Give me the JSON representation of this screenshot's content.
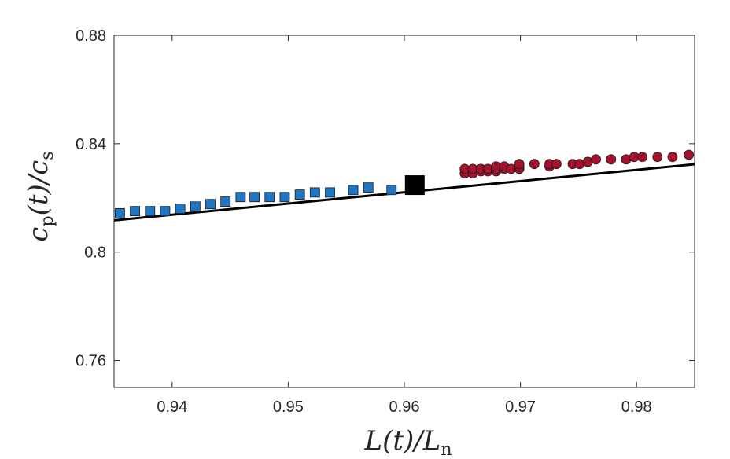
{
  "chart_data": {
    "type": "scatter",
    "xlabel": {
      "base": "L(t)/L",
      "sub": "n"
    },
    "ylabel": {
      "base": "c",
      "sub1": "p",
      "mid": "(t)/c",
      "sub2": "s"
    },
    "xlim": [
      0.935,
      0.985
    ],
    "ylim": [
      0.75,
      0.88
    ],
    "xticks": [
      0.94,
      0.95,
      0.96,
      0.97,
      0.98
    ],
    "yticks": [
      0.76,
      0.8,
      0.84,
      0.88
    ],
    "xtick_labels": [
      "0.94",
      "0.95",
      "0.96",
      "0.97",
      "0.98"
    ],
    "ytick_labels": [
      "0.76",
      "0.8",
      "0.84",
      "0.88"
    ],
    "grid": false,
    "series": [
      {
        "marker": "square",
        "color": "#1f77c4",
        "points": [
          [
            0.9355,
            0.8143
          ],
          [
            0.9368,
            0.8151
          ],
          [
            0.9381,
            0.8151
          ],
          [
            0.9394,
            0.8151
          ],
          [
            0.9407,
            0.816
          ],
          [
            0.942,
            0.8168
          ],
          [
            0.9433,
            0.8177
          ],
          [
            0.9446,
            0.8186
          ],
          [
            0.9459,
            0.8203
          ],
          [
            0.9471,
            0.8203
          ],
          [
            0.9484,
            0.8203
          ],
          [
            0.9497,
            0.8203
          ],
          [
            0.951,
            0.8212
          ],
          [
            0.9523,
            0.822
          ],
          [
            0.9536,
            0.822
          ],
          [
            0.9556,
            0.8229
          ],
          [
            0.9569,
            0.8238
          ],
          [
            0.9589,
            0.8229
          ]
        ]
      },
      {
        "marker": "circle",
        "color": "#a4122e",
        "points": [
          [
            0.9652,
            0.829
          ],
          [
            0.9652,
            0.8307
          ],
          [
            0.9659,
            0.829
          ],
          [
            0.9659,
            0.8307
          ],
          [
            0.9666,
            0.8298
          ],
          [
            0.9666,
            0.8307
          ],
          [
            0.9672,
            0.8298
          ],
          [
            0.9672,
            0.8307
          ],
          [
            0.9679,
            0.8298
          ],
          [
            0.9679,
            0.8307
          ],
          [
            0.9679,
            0.8316
          ],
          [
            0.9686,
            0.8307
          ],
          [
            0.9686,
            0.8316
          ],
          [
            0.9692,
            0.8307
          ],
          [
            0.9699,
            0.8307
          ],
          [
            0.9699,
            0.8316
          ],
          [
            0.9699,
            0.8325
          ],
          [
            0.9712,
            0.8325
          ],
          [
            0.9725,
            0.8316
          ],
          [
            0.9725,
            0.8325
          ],
          [
            0.9731,
            0.8325
          ],
          [
            0.9745,
            0.8325
          ],
          [
            0.9751,
            0.8325
          ],
          [
            0.9758,
            0.8333
          ],
          [
            0.9765,
            0.8342
          ],
          [
            0.9778,
            0.8342
          ],
          [
            0.9791,
            0.8342
          ],
          [
            0.9798,
            0.8351
          ],
          [
            0.9805,
            0.8351
          ],
          [
            0.9818,
            0.8351
          ],
          [
            0.9831,
            0.8351
          ],
          [
            0.9845,
            0.8359
          ]
        ]
      },
      {
        "marker": "big-square",
        "color": "#000000",
        "points": [
          [
            0.9609,
            0.8247
          ]
        ]
      }
    ],
    "fit_line": {
      "color": "#000000",
      "x": [
        0.935,
        0.985
      ],
      "y": [
        0.8117,
        0.8324
      ]
    }
  }
}
